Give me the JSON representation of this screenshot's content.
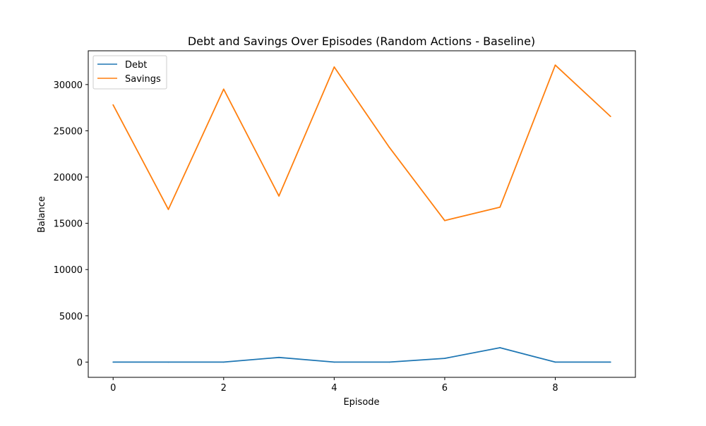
{
  "chart_data": {
    "type": "line",
    "title": "Debt and Savings Over Episodes (Random Actions - Baseline)",
    "xlabel": "Episode",
    "ylabel": "Balance",
    "x": [
      0,
      1,
      2,
      3,
      4,
      5,
      6,
      7,
      8,
      9
    ],
    "xlim": [
      -0.45,
      9.45
    ],
    "ylim": [
      -1650,
      33650
    ],
    "xticks": [
      0,
      2,
      4,
      6,
      8
    ],
    "yticks": [
      0,
      5000,
      10000,
      15000,
      20000,
      25000,
      30000
    ],
    "grid": false,
    "legend_position": "upper left",
    "series": [
      {
        "name": "Debt",
        "color": "#1f77b4",
        "values": [
          0,
          0,
          0,
          500,
          0,
          0,
          400,
          1550,
          0,
          0
        ]
      },
      {
        "name": "Savings",
        "color": "#ff7f0e",
        "values": [
          27800,
          16500,
          29500,
          17950,
          31900,
          23200,
          15300,
          16750,
          32100,
          26550
        ]
      }
    ]
  }
}
